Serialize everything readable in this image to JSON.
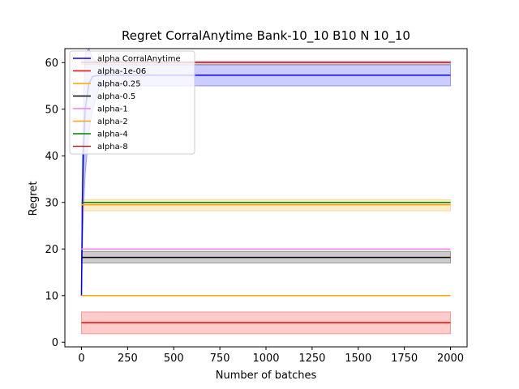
{
  "chart_data": {
    "type": "line",
    "title": "Regret CorralAnytime Bank-10_10 B10 N 10_10",
    "xlabel": "Number of batches",
    "ylabel": "Regret",
    "xlim": [
      -90,
      2090
    ],
    "ylim": [
      -1,
      63
    ],
    "xticks": [
      0,
      250,
      500,
      750,
      1000,
      1250,
      1500,
      1750,
      2000
    ],
    "yticks": [
      0,
      10,
      20,
      30,
      40,
      50,
      60
    ],
    "grid": false,
    "legend_position": "upper-left",
    "series": [
      {
        "name": "alpha CorralAnytime",
        "color": "#0000ff",
        "band_color": "#0000ff",
        "x": [
          0,
          5,
          10,
          20,
          40,
          60,
          100,
          2000
        ],
        "y": [
          10,
          30,
          40,
          50,
          55.5,
          57,
          57.3,
          57.3
        ],
        "band": [
          [
            10,
            10
          ],
          [
            20,
            40
          ],
          [
            28,
            50
          ],
          [
            36,
            62
          ],
          [
            45,
            63
          ],
          [
            50,
            61
          ],
          [
            55,
            59.5
          ],
          [
            55,
            59.5
          ]
        ]
      },
      {
        "name": "alpha-1e-06",
        "color": "#ff0000",
        "band_color": "#ff0000",
        "x": [
          0,
          2000
        ],
        "y": [
          4.2,
          4.2
        ],
        "band": [
          [
            1.8,
            6.5
          ],
          [
            1.8,
            6.5
          ]
        ]
      },
      {
        "name": "alpha-0.25",
        "color": "#ffa500",
        "band_color": null,
        "x": [
          0,
          2000
        ],
        "y": [
          10,
          10
        ],
        "band": null
      },
      {
        "name": "alpha-0.5",
        "color": "#000000",
        "band_color": "#000000",
        "x": [
          0,
          2000
        ],
        "y": [
          18.2,
          18.2
        ],
        "band": [
          [
            17,
            19.5
          ],
          [
            17,
            19.5
          ]
        ]
      },
      {
        "name": "alpha-1",
        "color": "#ee82ee",
        "band_color": null,
        "x": [
          0,
          2000
        ],
        "y": [
          20,
          20
        ],
        "band": null
      },
      {
        "name": "alpha-2",
        "color": "#ffa500",
        "band_color": "#ffa500",
        "x": [
          0,
          2000
        ],
        "y": [
          29.5,
          29.5
        ],
        "band": [
          [
            28.2,
            30.6
          ],
          [
            28.2,
            30.6
          ]
        ]
      },
      {
        "name": "alpha-4",
        "color": "#008000",
        "band_color": null,
        "x": [
          0,
          2000
        ],
        "y": [
          30,
          30
        ],
        "band": null
      },
      {
        "name": "alpha-8",
        "color": "#a52a2a",
        "band_color": "#a52a2a",
        "x": [
          0,
          2000
        ],
        "y": [
          60,
          60
        ],
        "band": [
          [
            59.6,
            60.3
          ],
          [
            59.6,
            60.3
          ]
        ]
      }
    ]
  }
}
